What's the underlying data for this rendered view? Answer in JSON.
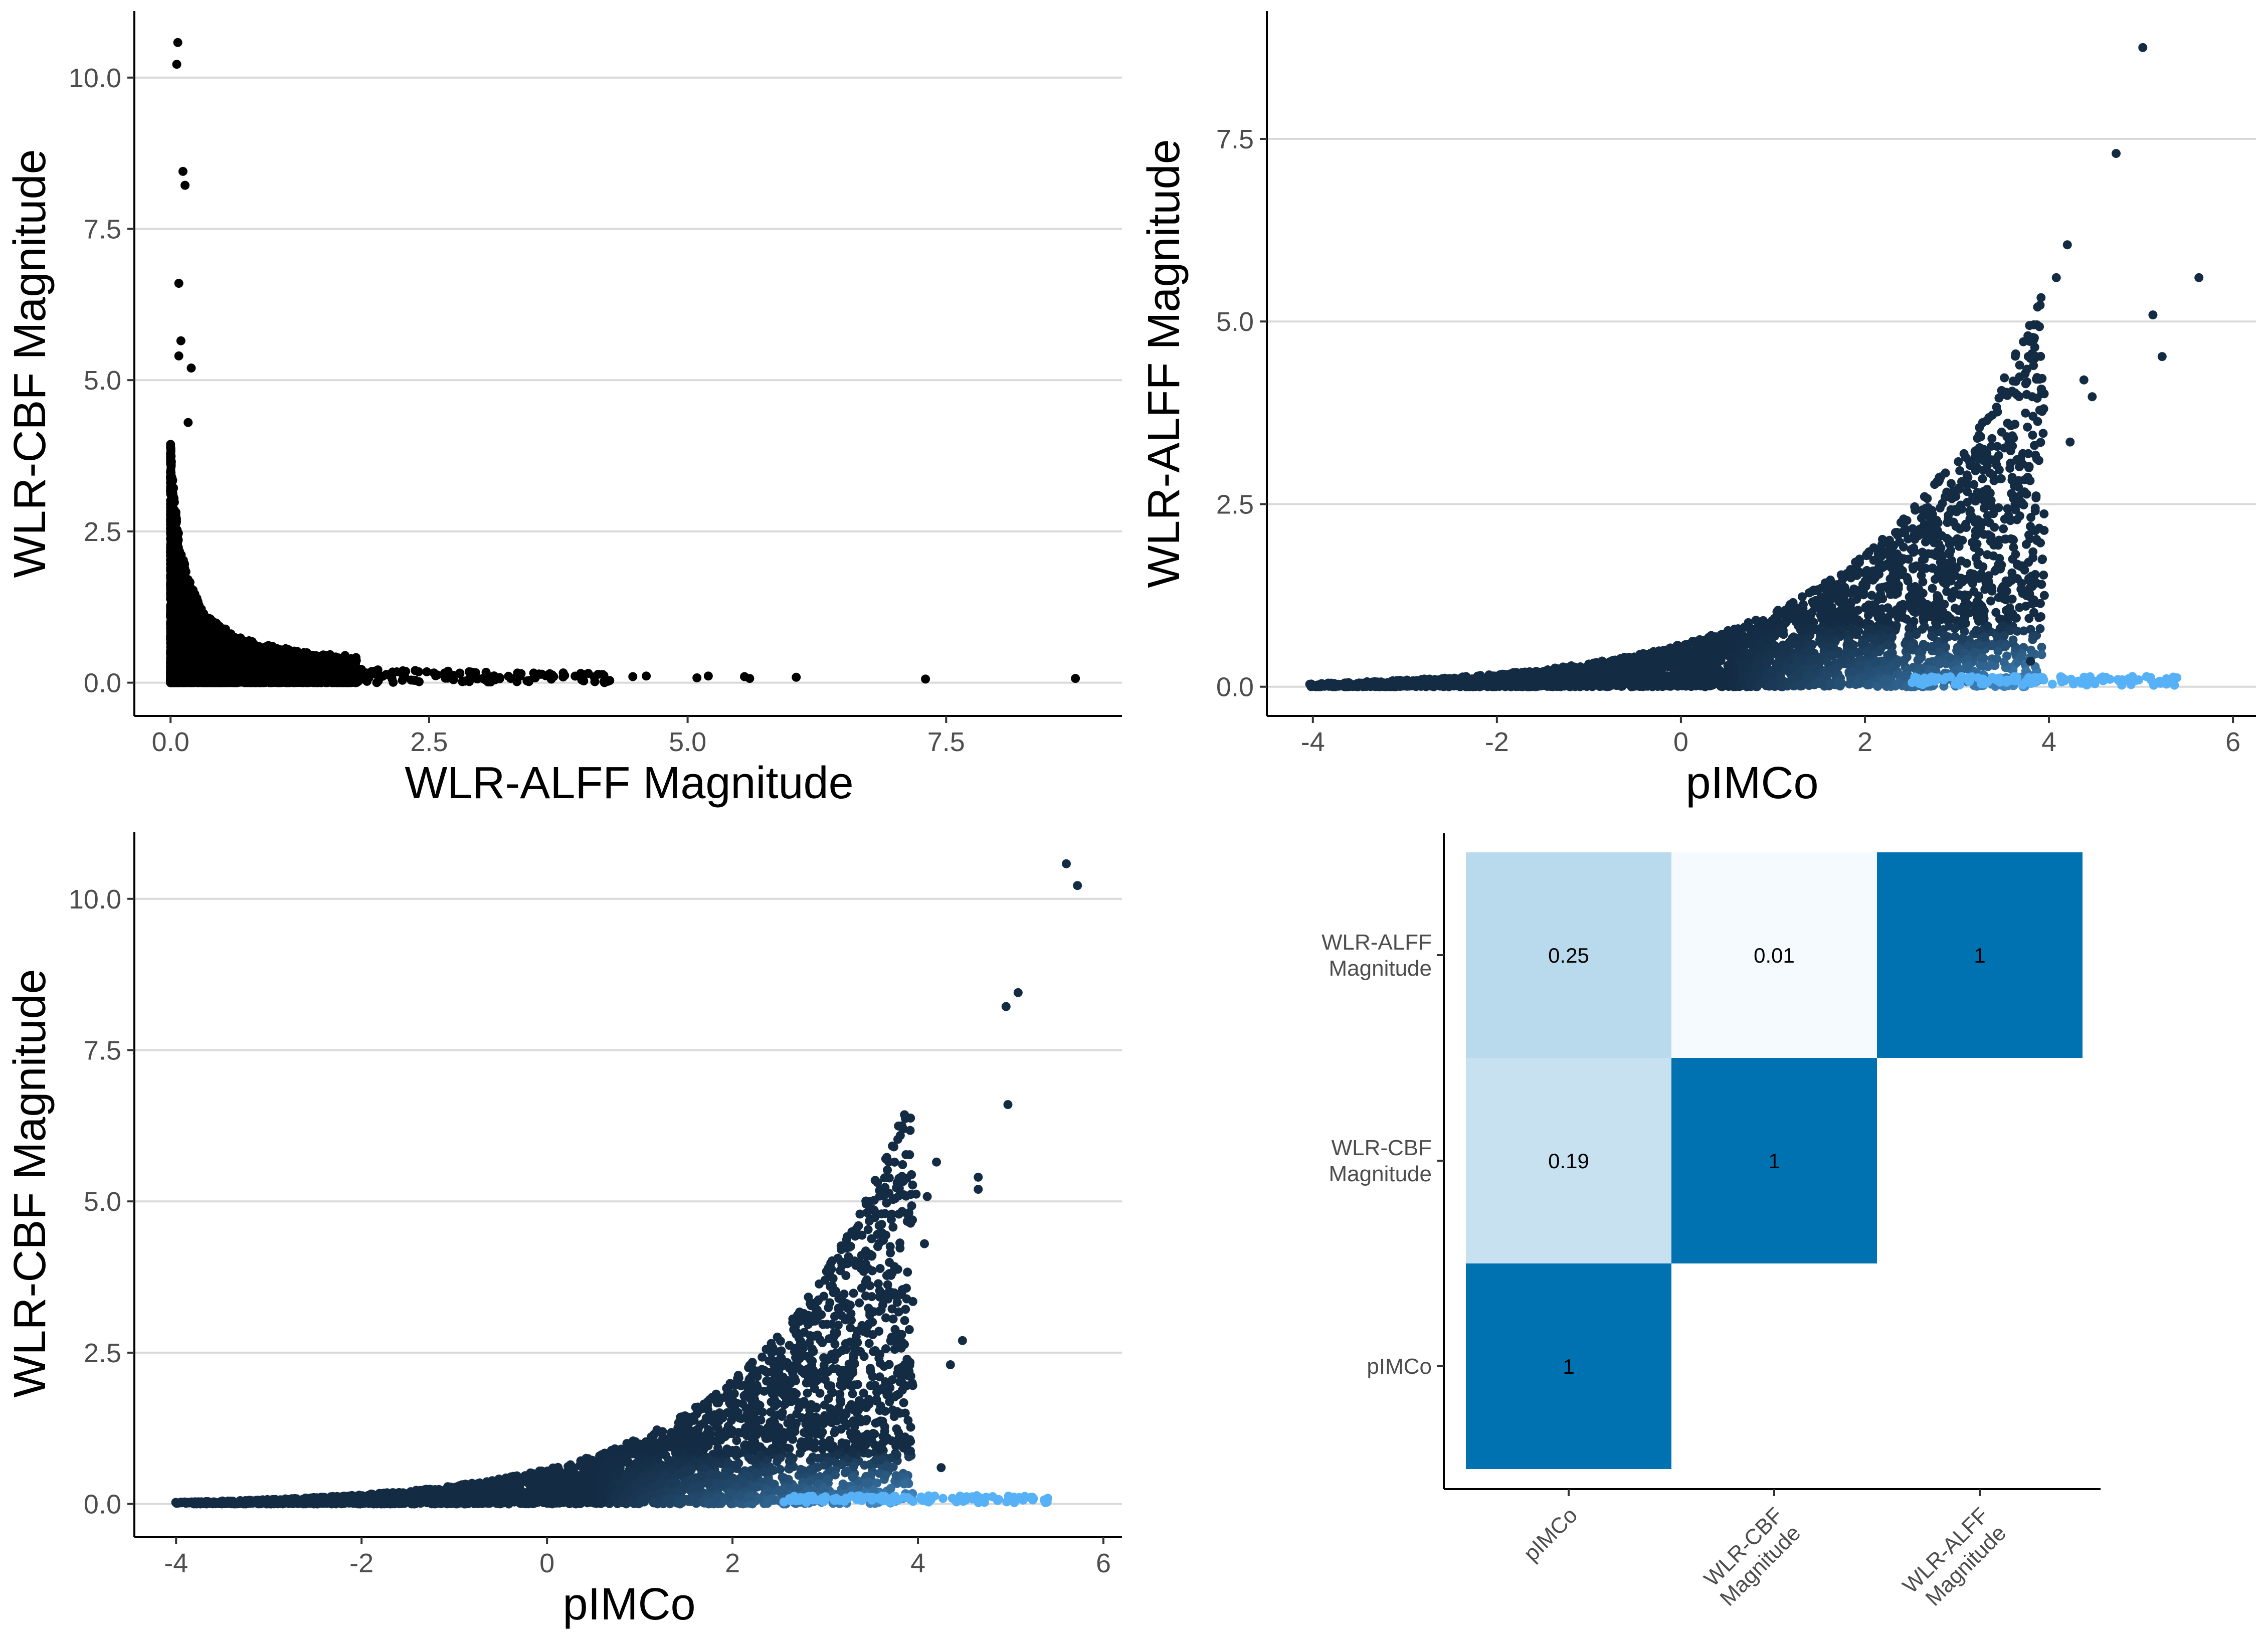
{
  "chart_data": [
    {
      "type": "scatter",
      "xlabel": "WLR-ALFF Magnitude",
      "ylabel": "WLR-CBF Magnitude",
      "xlim": [
        -0.35,
        9.2
      ],
      "ylim": [
        -0.55,
        11.1
      ],
      "xticks": [
        "0.0",
        "2.5",
        "5.0",
        "7.5"
      ],
      "yticks": [
        "0.0",
        "2.5",
        "5.0",
        "7.5",
        "10.0"
      ],
      "grid": "horizontal-major",
      "point_color": "#000000",
      "outlier_points": [
        {
          "x": 0.07,
          "y": 10.58
        },
        {
          "x": 0.06,
          "y": 10.22
        },
        {
          "x": 0.12,
          "y": 8.45
        },
        {
          "x": 0.14,
          "y": 8.22
        },
        {
          "x": 0.08,
          "y": 6.6
        },
        {
          "x": 0.1,
          "y": 5.65
        },
        {
          "x": 0.08,
          "y": 5.4
        },
        {
          "x": 0.2,
          "y": 5.2
        },
        {
          "x": 0.17,
          "y": 4.3
        },
        {
          "x": 4.19,
          "y": 0.12
        },
        {
          "x": 4.47,
          "y": 0.1
        },
        {
          "x": 4.6,
          "y": 0.11
        },
        {
          "x": 5.09,
          "y": 0.08
        },
        {
          "x": 5.2,
          "y": 0.11
        },
        {
          "x": 5.6,
          "y": 0.07
        },
        {
          "x": 5.55,
          "y": 0.1
        },
        {
          "x": 6.05,
          "y": 0.09
        },
        {
          "x": 7.3,
          "y": 0.06
        },
        {
          "x": 8.75,
          "y": 0.07
        }
      ]
    },
    {
      "type": "scatter",
      "xlabel": "pIMCo",
      "ylabel": "WLR-ALFF Magnitude",
      "xlim": [
        -4.5,
        6.25
      ],
      "ylim": [
        -0.4,
        9.25
      ],
      "xticks": [
        "-4",
        "-2",
        "0",
        "2",
        "4",
        "6"
      ],
      "yticks": [
        "0.0",
        "2.5",
        "5.0",
        "7.5"
      ],
      "grid": "horizontal-major",
      "color_scale": [
        "#132b43",
        "#56b1f7"
      ],
      "outlier_points": [
        {
          "x": 5.02,
          "y": 8.75
        },
        {
          "x": 4.73,
          "y": 7.3
        },
        {
          "x": 4.2,
          "y": 6.05
        },
        {
          "x": 4.08,
          "y": 5.6
        },
        {
          "x": 5.63,
          "y": 5.6
        },
        {
          "x": 5.13,
          "y": 5.09
        },
        {
          "x": 5.23,
          "y": 4.52
        },
        {
          "x": 4.38,
          "y": 4.2
        },
        {
          "x": 4.47,
          "y": 3.97
        },
        {
          "x": 4.23,
          "y": 3.35
        },
        {
          "x": 3.87,
          "y": 2.0
        },
        {
          "x": 3.6,
          "y": 1.2
        },
        {
          "x": 3.95,
          "y": 1.25
        },
        {
          "x": 3.8,
          "y": 0.35
        }
      ]
    },
    {
      "type": "scatter",
      "xlabel": "pIMCo",
      "ylabel": "WLR-CBF Magnitude",
      "xlim": [
        -4.45,
        6.2
      ],
      "ylim": [
        -0.55,
        11.1
      ],
      "xticks": [
        "-4",
        "-2",
        "0",
        "2",
        "4",
        "6"
      ],
      "yticks": [
        "0.0",
        "2.5",
        "5.0",
        "7.5",
        "10.0"
      ],
      "grid": "horizontal-major",
      "color_scale": [
        "#132b43",
        "#56b1f7"
      ],
      "outlier_points": [
        {
          "x": 5.6,
          "y": 10.58
        },
        {
          "x": 5.72,
          "y": 10.22
        },
        {
          "x": 5.08,
          "y": 8.45
        },
        {
          "x": 4.95,
          "y": 8.22
        },
        {
          "x": 4.97,
          "y": 6.6
        },
        {
          "x": 4.2,
          "y": 5.65
        },
        {
          "x": 4.65,
          "y": 5.4
        },
        {
          "x": 4.65,
          "y": 5.2
        },
        {
          "x": 3.98,
          "y": 5.12
        },
        {
          "x": 4.1,
          "y": 5.08
        },
        {
          "x": 4.07,
          "y": 4.3
        },
        {
          "x": 4.48,
          "y": 2.7
        },
        {
          "x": 4.35,
          "y": 2.3
        },
        {
          "x": 4.25,
          "y": 0.6
        }
      ]
    },
    {
      "type": "heatmap",
      "x_categories": [
        "pIMCo",
        "WLR-CBF Magnitude",
        "WLR-ALFF Magnitude"
      ],
      "y_categories": [
        "pIMCo",
        "WLR-CBF Magnitude",
        "WLR-ALFF Magnitude"
      ],
      "cells": [
        {
          "x": "pIMCo",
          "y": "pIMCo",
          "value": 1,
          "label": "1"
        },
        {
          "x": "pIMCo",
          "y": "WLR-CBF Magnitude",
          "value": 0.19,
          "label": "0.19"
        },
        {
          "x": "WLR-CBF Magnitude",
          "y": "WLR-CBF Magnitude",
          "value": 1,
          "label": "1"
        },
        {
          "x": "pIMCo",
          "y": "WLR-ALFF Magnitude",
          "value": 0.25,
          "label": "0.25"
        },
        {
          "x": "WLR-CBF Magnitude",
          "y": "WLR-ALFF Magnitude",
          "value": 0.01,
          "label": "0.01"
        },
        {
          "x": "WLR-ALFF Magnitude",
          "y": "WLR-ALFF Magnitude",
          "value": 1,
          "label": "1"
        }
      ],
      "color_low": "#f7fbff",
      "color_high": "#0072b2"
    }
  ]
}
